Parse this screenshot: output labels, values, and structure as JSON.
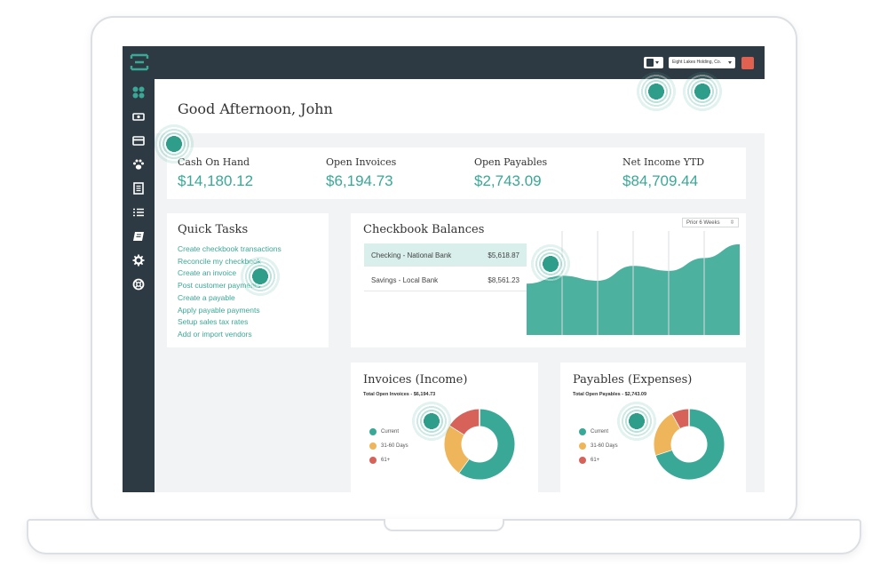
{
  "header": {
    "company": "Eight Lakes Holding, Co.",
    "brand_color": "#3aa896",
    "topbar_color": "#2e3a43",
    "alert_color": "#e0614f"
  },
  "sidebar": {
    "items": [
      {
        "icon": "dashboard-icon"
      },
      {
        "icon": "cash-icon"
      },
      {
        "icon": "credit-card-icon"
      },
      {
        "icon": "paw-icon"
      },
      {
        "icon": "document-icon"
      },
      {
        "icon": "list-icon"
      },
      {
        "icon": "ledger-icon"
      },
      {
        "icon": "gear-icon"
      },
      {
        "icon": "help-icon"
      }
    ]
  },
  "greeting": "Good Afternoon, John",
  "kpis": [
    {
      "label": "Cash On Hand",
      "value": "$14,180.12"
    },
    {
      "label": "Open Invoices",
      "value": "$6,194.73"
    },
    {
      "label": "Open Payables",
      "value": "$2,743.09"
    },
    {
      "label": "Net Income YTD",
      "value": "$84,709.44"
    }
  ],
  "quick_tasks": {
    "title": "Quick Tasks",
    "items": [
      "Create checkbook transactions",
      "Reconcile my checkbook",
      "Create an invoice",
      "Post customer payments",
      "Create a payable",
      "Apply payable payments",
      "Setup sales tax rates",
      "Add or import vendors"
    ]
  },
  "checkbook": {
    "title": "Checkbook Balances",
    "range": "Prior 6 Weeks",
    "accounts": [
      {
        "name": "Checking - National Bank",
        "amount": "$5,618.87"
      },
      {
        "name": "Savings - Local Bank",
        "amount": "$8,561.23"
      }
    ]
  },
  "invoices": {
    "title": "Invoices (Income)",
    "subtitle": "Total Open Invoices - $6,194.73",
    "legend": [
      "Current",
      "31-60 Days",
      "61+"
    ]
  },
  "payables": {
    "title": "Payables (Expenses)",
    "subtitle": "Total Open Payables - $2,743.09",
    "legend": [
      "Current",
      "31-60 Days",
      "61+"
    ]
  },
  "legend_colors": [
    "#3aa896",
    "#efb55a",
    "#d6625a"
  ],
  "chart_data": [
    {
      "type": "area",
      "x": [
        1,
        2,
        3,
        4,
        5,
        6,
        7
      ],
      "series": [
        {
          "values": [
            52,
            60,
            55,
            70,
            65,
            78,
            92
          ]
        }
      ],
      "ylim": [
        0,
        100
      ],
      "grid": true
    },
    {
      "type": "pie",
      "categories": [
        "Current",
        "31-60 Days",
        "61+"
      ],
      "values": [
        60,
        24,
        16
      ]
    },
    {
      "type": "pie",
      "categories": [
        "Current",
        "31-60 Days",
        "61+"
      ],
      "values": [
        70,
        22,
        8
      ]
    }
  ]
}
